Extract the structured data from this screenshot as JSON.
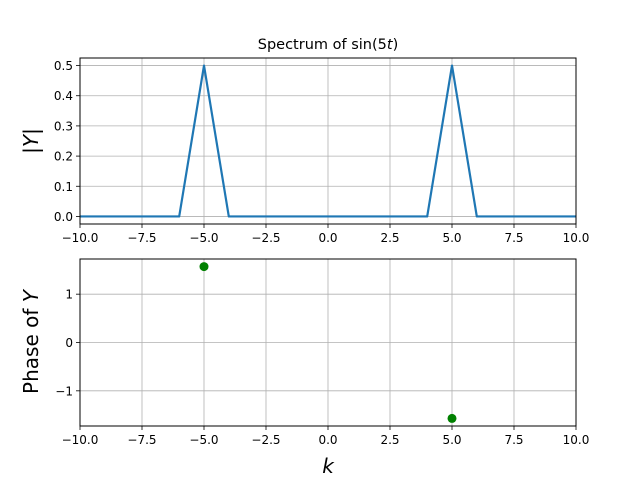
{
  "chart_data": [
    {
      "type": "line",
      "title": "Spectrum of sin(5t)",
      "title_parts": [
        "Spectrum of sin(5",
        "t",
        ")"
      ],
      "xlabel": "",
      "ylabel": "|Y|",
      "ylabel_parts": [
        "|",
        "Y",
        "|"
      ],
      "xlim": [
        -10,
        10
      ],
      "ylim": [
        -0.025,
        0.525
      ],
      "grid": true,
      "xticks": [
        -10,
        -7.5,
        -5,
        -2.5,
        0,
        2.5,
        5,
        7.5,
        10
      ],
      "xtick_labels": [
        "−10.0",
        "−7.5",
        "−5.0",
        "−2.5",
        "0.0",
        "2.5",
        "5.0",
        "7.5",
        "10.0"
      ],
      "yticks": [
        0,
        0.1,
        0.2,
        0.3,
        0.4,
        0.5
      ],
      "ytick_labels": [
        "0.0",
        "0.1",
        "0.2",
        "0.3",
        "0.4",
        "0.5"
      ],
      "color": "#1f77b4",
      "x": [
        -10,
        -6,
        -5,
        -4,
        4,
        5,
        6,
        10
      ],
      "y": [
        0,
        0,
        0.5,
        0,
        0,
        0.5,
        0,
        0
      ]
    },
    {
      "type": "scatter",
      "title": "",
      "xlabel": "k",
      "ylabel": "Phase of Y",
      "ylabel_parts": [
        "Phase of ",
        "Y"
      ],
      "xlim": [
        -10,
        10
      ],
      "ylim": [
        -1.7279,
        1.7279
      ],
      "grid": true,
      "xticks": [
        -10,
        -7.5,
        -5,
        -2.5,
        0,
        2.5,
        5,
        7.5,
        10
      ],
      "xtick_labels": [
        "−10.0",
        "−7.5",
        "−5.0",
        "−2.5",
        "0.0",
        "2.5",
        "5.0",
        "7.5",
        "10.0"
      ],
      "yticks": [
        -1,
        0,
        1
      ],
      "ytick_labels": [
        "−1",
        "0",
        "1"
      ],
      "color": "#008000",
      "x": [
        -5,
        5
      ],
      "y": [
        1.5708,
        -1.5708
      ]
    }
  ]
}
